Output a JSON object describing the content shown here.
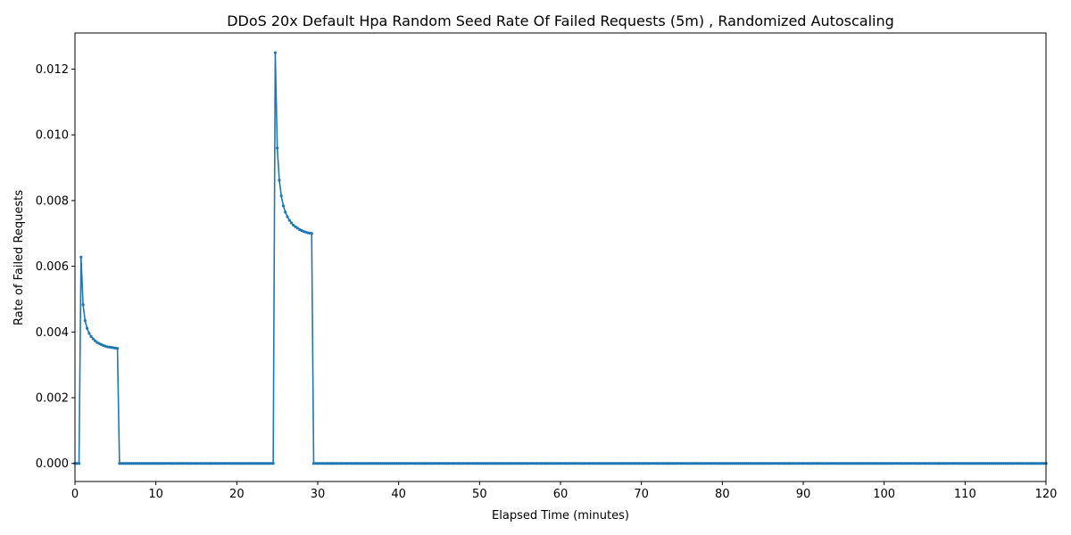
{
  "chart_data": {
    "type": "line",
    "title": "DDoS 20x Default Hpa Random Seed Rate Of Failed Requests (5m) , Randomized Autoscaling",
    "xlabel": "Elapsed Time (minutes)",
    "ylabel": "Rate of Failed Requests",
    "xlim": [
      0,
      120
    ],
    "ylim": [
      -0.00055,
      0.0131
    ],
    "x_ticks": [
      0,
      10,
      20,
      30,
      40,
      50,
      60,
      70,
      80,
      90,
      100,
      110,
      120
    ],
    "y_ticks": [
      0.0,
      0.002,
      0.004,
      0.006,
      0.008,
      0.01,
      0.012
    ],
    "y_tick_labels": [
      "0.000",
      "0.002",
      "0.004",
      "0.006",
      "0.008",
      "0.010",
      "0.012"
    ],
    "grid": false,
    "legend": "none",
    "series": [
      {
        "color": "#1f77b4",
        "marker_step_minutes": 0.25,
        "x": [
          0,
          0.25,
          0.5,
          0.75,
          1.0,
          1.25,
          1.5,
          1.75,
          2.0,
          2.25,
          2.5,
          2.75,
          3.0,
          3.25,
          3.5,
          3.75,
          4.0,
          4.25,
          4.5,
          4.75,
          5.0,
          5.25,
          5.5,
          6.0,
          24.5,
          24.75,
          25.0,
          25.25,
          25.5,
          25.75,
          26.0,
          26.25,
          26.5,
          26.75,
          27.0,
          27.25,
          27.5,
          27.75,
          28.0,
          28.25,
          28.5,
          28.75,
          29.0,
          29.25,
          29.5,
          120
        ],
        "y": [
          0,
          0,
          0,
          0.00628,
          0.00483,
          0.00435,
          0.00411,
          0.00396,
          0.00386,
          0.00379,
          0.00373,
          0.00368,
          0.00365,
          0.00362,
          0.00359,
          0.00357,
          0.00355,
          0.00354,
          0.00353,
          0.00352,
          0.00351,
          0.0035,
          0,
          0,
          0,
          0.0125,
          0.0096,
          0.00862,
          0.00814,
          0.00784,
          0.00765,
          0.00751,
          0.0074,
          0.00732,
          0.00725,
          0.0072,
          0.00716,
          0.00712,
          0.00709,
          0.00706,
          0.00704,
          0.00702,
          0.00701,
          0.007,
          0,
          0
        ]
      }
    ]
  }
}
